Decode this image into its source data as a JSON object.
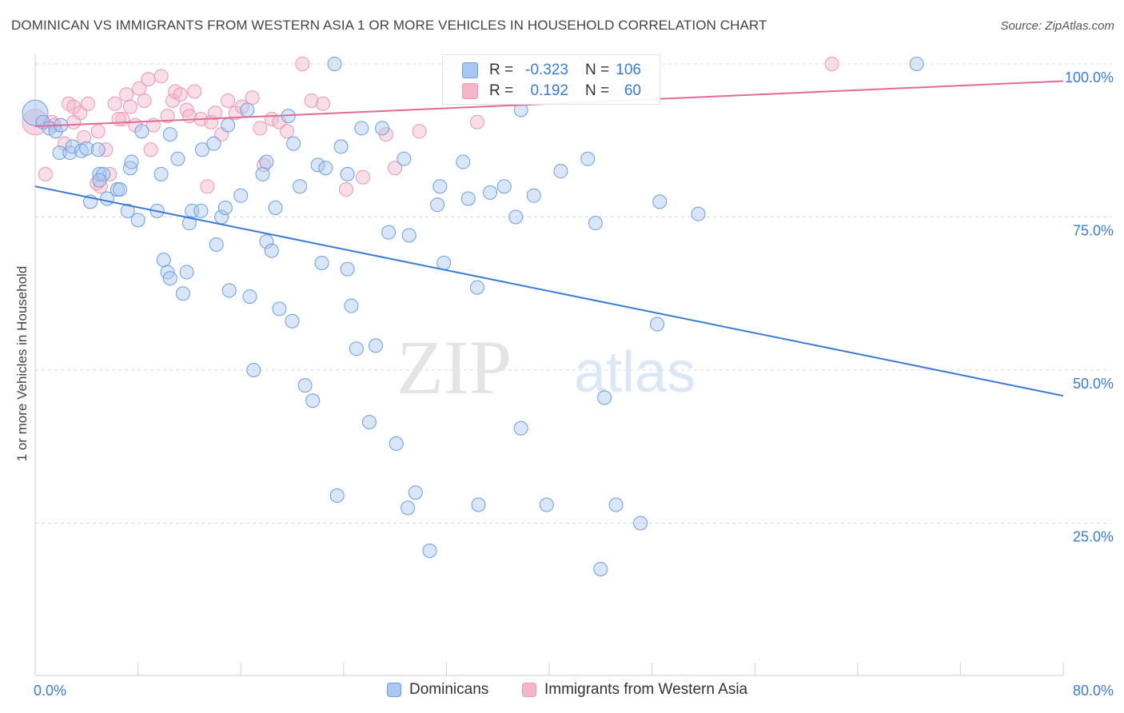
{
  "title": "DOMINICAN VS IMMIGRANTS FROM WESTERN ASIA 1 OR MORE VEHICLES IN HOUSEHOLD CORRELATION CHART",
  "source": "Source: ZipAtlas.com",
  "watermark": {
    "zip": "ZIP",
    "atlas": "atlas"
  },
  "colors": {
    "blue": "#3a7bd5",
    "blue_fill": "#a9c7f0",
    "blue_stroke": "#6b9fe0",
    "pink": "#e06b96",
    "pink_fill": "#f5b6ca",
    "pink_stroke": "#eb97b3",
    "grid": "#d9d9d9",
    "tick_label": "#3a7bd5"
  },
  "legend": {
    "rows": [
      {
        "r_label": "R =",
        "r_value": "-0.323",
        "n_label": "N =",
        "n_value": "106"
      },
      {
        "r_label": "R =",
        "r_value": "0.192",
        "n_label": "N =",
        "n_value": "60"
      }
    ]
  },
  "bottom_legend": {
    "dominicans": "Dominicans",
    "immigrants": "Immigrants from Western Asia"
  },
  "chart_data": {
    "type": "scatter",
    "title": "DOMINICAN VS IMMIGRANTS FROM WESTERN ASIA 1 OR MORE VEHICLES IN HOUSEHOLD CORRELATION CHART",
    "xlabel": "",
    "ylabel": "1 or more Vehicles in Household",
    "xlim": [
      0,
      80
    ],
    "ylim": [
      0,
      105
    ],
    "x_tick_labels": [
      "0.0%",
      "80.0%"
    ],
    "y_tick_labels": [
      "25.0%",
      "50.0%",
      "75.0%",
      "100.0%"
    ],
    "y_ticks": [
      25,
      50,
      75,
      100
    ],
    "grid": true,
    "legend_position": "top-center",
    "series": [
      {
        "name": "Dominicans",
        "trendline": {
          "x0": 0,
          "y0": 80.0,
          "x1": 80,
          "y1": 45.8
        },
        "points": [
          [
            0.0,
            92.0
          ],
          [
            0.6,
            90.5
          ],
          [
            1.1,
            89.5
          ],
          [
            1.6,
            89.0
          ],
          [
            2.0,
            90.0
          ],
          [
            1.9,
            85.5
          ],
          [
            2.7,
            85.5
          ],
          [
            2.9,
            86.5
          ],
          [
            3.6,
            85.8
          ],
          [
            4.0,
            86.2
          ],
          [
            4.9,
            86.0
          ],
          [
            5.0,
            82.0
          ],
          [
            5.3,
            82.0
          ],
          [
            5.6,
            78.0
          ],
          [
            4.3,
            77.5
          ],
          [
            6.4,
            79.5
          ],
          [
            6.6,
            79.5
          ],
          [
            7.2,
            76.0
          ],
          [
            7.4,
            83.0
          ],
          [
            8.0,
            74.5
          ],
          [
            8.3,
            89.0
          ],
          [
            9.5,
            76.0
          ],
          [
            9.8,
            82.0
          ],
          [
            10.0,
            68.0
          ],
          [
            10.3,
            66.0
          ],
          [
            10.5,
            65.0
          ],
          [
            11.1,
            84.5
          ],
          [
            11.5,
            62.5
          ],
          [
            11.8,
            66.0
          ],
          [
            12.2,
            76.0
          ],
          [
            12.9,
            76.0
          ],
          [
            13.0,
            86.0
          ],
          [
            13.9,
            87.0
          ],
          [
            14.5,
            75.0
          ],
          [
            14.8,
            76.5
          ],
          [
            14.1,
            70.5
          ],
          [
            15.1,
            63.0
          ],
          [
            16.0,
            78.5
          ],
          [
            16.5,
            92.5
          ],
          [
            16.7,
            62.0
          ],
          [
            17.0,
            50.0
          ],
          [
            17.7,
            82.0
          ],
          [
            18.0,
            71.0
          ],
          [
            18.4,
            69.5
          ],
          [
            18.7,
            76.5
          ],
          [
            19.0,
            60.0
          ],
          [
            19.7,
            91.5
          ],
          [
            20.0,
            58.0
          ],
          [
            20.1,
            87.0
          ],
          [
            20.6,
            80.0
          ],
          [
            21.0,
            47.5
          ],
          [
            21.6,
            45.0
          ],
          [
            22.0,
            83.5
          ],
          [
            22.3,
            67.5
          ],
          [
            22.6,
            83.0
          ],
          [
            23.3,
            100.0
          ],
          [
            23.5,
            29.5
          ],
          [
            23.8,
            86.5
          ],
          [
            24.3,
            66.5
          ],
          [
            24.6,
            60.5
          ],
          [
            25.4,
            89.5
          ],
          [
            25.0,
            53.5
          ],
          [
            26.0,
            41.5
          ],
          [
            27.0,
            89.5
          ],
          [
            27.5,
            72.5
          ],
          [
            28.1,
            38.0
          ],
          [
            28.7,
            84.5
          ],
          [
            29.1,
            72.0
          ],
          [
            29.6,
            30.0
          ],
          [
            30.7,
            20.5
          ],
          [
            31.3,
            77.0
          ],
          [
            31.5,
            80.0
          ],
          [
            31.8,
            67.5
          ],
          [
            32.3,
            100.0
          ],
          [
            33.3,
            84.0
          ],
          [
            33.7,
            78.0
          ],
          [
            34.4,
            63.5
          ],
          [
            34.5,
            28.0
          ],
          [
            35.4,
            79.0
          ],
          [
            36.5,
            80.0
          ],
          [
            37.4,
            75.0
          ],
          [
            37.8,
            40.5
          ],
          [
            37.8,
            92.5
          ],
          [
            38.8,
            78.5
          ],
          [
            40.9,
            82.5
          ],
          [
            43.0,
            84.5
          ],
          [
            43.6,
            74.0
          ],
          [
            44.0,
            17.5
          ],
          [
            44.3,
            45.5
          ],
          [
            45.2,
            28.0
          ],
          [
            47.1,
            25.0
          ],
          [
            48.4,
            57.5
          ],
          [
            48.6,
            77.5
          ],
          [
            51.6,
            75.5
          ],
          [
            34.5,
            100.0
          ],
          [
            68.6,
            100.0
          ],
          [
            24.3,
            82.0
          ],
          [
            18.0,
            84.0
          ],
          [
            10.5,
            88.5
          ],
          [
            5.0,
            81.0
          ],
          [
            7.5,
            84.0
          ],
          [
            15.0,
            90.0
          ],
          [
            29.0,
            27.5
          ],
          [
            39.8,
            28.0
          ],
          [
            12.0,
            74.0
          ],
          [
            26.5,
            54.0
          ]
        ]
      },
      {
        "name": "Immigrants from Western Asia",
        "trendline": {
          "x0": 0,
          "y0": 89.8,
          "x1": 80,
          "y1": 97.2
        },
        "points": [
          [
            0.0,
            90.5
          ],
          [
            0.8,
            82.0
          ],
          [
            1.3,
            90.5
          ],
          [
            1.5,
            90.0
          ],
          [
            2.3,
            87.0
          ],
          [
            2.6,
            93.5
          ],
          [
            3.0,
            93.0
          ],
          [
            3.5,
            92.0
          ],
          [
            3.8,
            88.0
          ],
          [
            4.1,
            93.5
          ],
          [
            4.8,
            80.5
          ],
          [
            4.9,
            89.0
          ],
          [
            5.1,
            80.0
          ],
          [
            5.5,
            86.0
          ],
          [
            5.8,
            82.0
          ],
          [
            6.2,
            93.5
          ],
          [
            6.8,
            91.0
          ],
          [
            7.1,
            95.0
          ],
          [
            7.4,
            93.0
          ],
          [
            7.8,
            90.0
          ],
          [
            8.1,
            96.0
          ],
          [
            8.5,
            94.0
          ],
          [
            8.8,
            97.5
          ],
          [
            9.2,
            90.0
          ],
          [
            9.8,
            98.0
          ],
          [
            10.3,
            91.5
          ],
          [
            10.7,
            94.0
          ],
          [
            10.9,
            95.5
          ],
          [
            11.3,
            95.0
          ],
          [
            11.8,
            92.5
          ],
          [
            12.0,
            91.5
          ],
          [
            12.4,
            95.5
          ],
          [
            12.9,
            91.0
          ],
          [
            13.4,
            80.0
          ],
          [
            13.7,
            90.5
          ],
          [
            14.0,
            92.0
          ],
          [
            14.5,
            88.5
          ],
          [
            15.0,
            94.0
          ],
          [
            15.6,
            92.0
          ],
          [
            16.1,
            93.0
          ],
          [
            16.9,
            94.5
          ],
          [
            17.5,
            89.5
          ],
          [
            17.8,
            83.5
          ],
          [
            18.4,
            91.0
          ],
          [
            19.0,
            90.5
          ],
          [
            19.6,
            89.0
          ],
          [
            20.8,
            100.0
          ],
          [
            21.5,
            94.0
          ],
          [
            22.4,
            93.5
          ],
          [
            24.2,
            79.5
          ],
          [
            25.5,
            81.5
          ],
          [
            27.3,
            88.5
          ],
          [
            28.0,
            83.0
          ],
          [
            29.9,
            89.0
          ],
          [
            34.4,
            90.5
          ],
          [
            42.5,
            100.0
          ],
          [
            62.0,
            100.0
          ],
          [
            6.5,
            91.0
          ],
          [
            9.0,
            86.0
          ],
          [
            3.0,
            90.5
          ]
        ]
      }
    ]
  }
}
